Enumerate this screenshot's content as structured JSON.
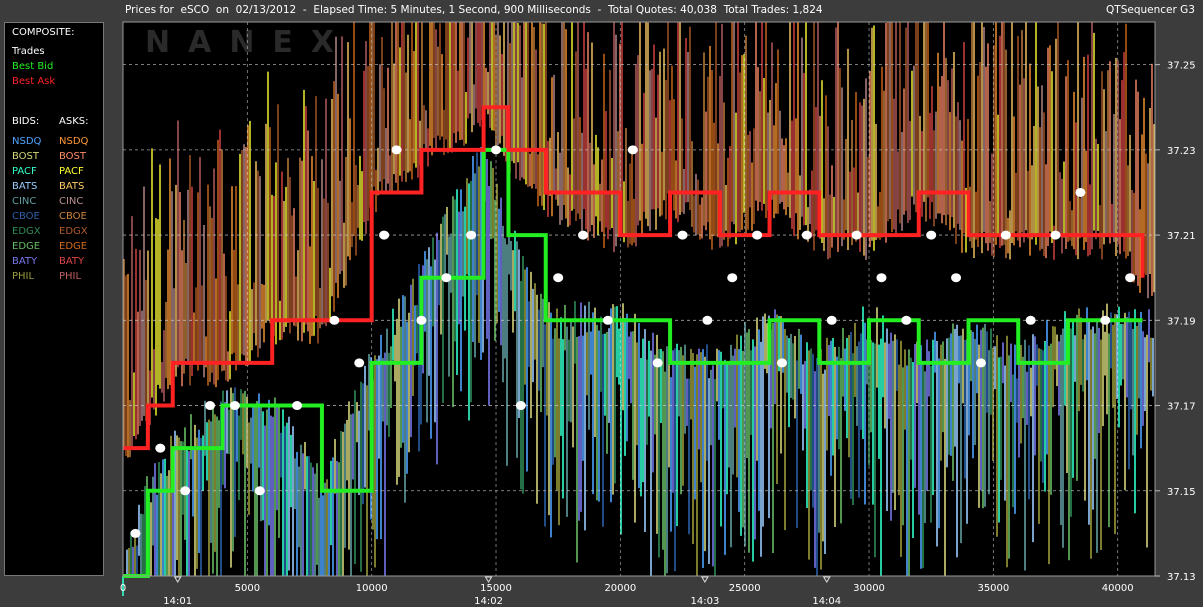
{
  "header": {
    "title": "Prices for  eSCO  on  02/13/2012  -  Elapsed Time: 5 Minutes, 1 Second, 900 Milliseconds  -  Total Quotes: 40,038  Total Trades: 1,824",
    "app": "QTSequencer G3"
  },
  "watermark": "NANEX",
  "legend": {
    "composite_title": "COMPOSITE:",
    "composite": [
      {
        "label": "Trades",
        "color": "#ffffff"
      },
      {
        "label": "Best Bid",
        "color": "#22ee22"
      },
      {
        "label": "Best Ask",
        "color": "#ff2222"
      }
    ],
    "bids_title": "BIDS:",
    "asks_title": "ASKS:",
    "exchanges": [
      {
        "name": "NSDQ",
        "bid_color": "#4fa3ff",
        "ask_color": "#ff9933"
      },
      {
        "name": "BOST",
        "bid_color": "#d4d47a",
        "ask_color": "#ff8c69"
      },
      {
        "name": "PACF",
        "bid_color": "#33ffcc",
        "ask_color": "#ffff33"
      },
      {
        "name": "BATS",
        "bid_color": "#99ccff",
        "ask_color": "#ffcc66"
      },
      {
        "name": "CINC",
        "bid_color": "#5f9ea0",
        "ask_color": "#bc8f8f"
      },
      {
        "name": "CBOE",
        "bid_color": "#2a5fa8",
        "ask_color": "#cd853f"
      },
      {
        "name": "EDGX",
        "bid_color": "#2e8b57",
        "ask_color": "#b05a2a"
      },
      {
        "name": "EDGE",
        "bid_color": "#66bb66",
        "ask_color": "#d2691e"
      },
      {
        "name": "BATY",
        "bid_color": "#7777ee",
        "ask_color": "#dd4444"
      },
      {
        "name": "PHIL",
        "bid_color": "#9b9b3a",
        "ask_color": "#c06060"
      }
    ]
  },
  "chart_data": {
    "type": "line",
    "title": "",
    "xlabel": "",
    "ylabel": "",
    "xlim": [
      0,
      41500
    ],
    "ylim": [
      37.13,
      37.26
    ],
    "x_ticks": [
      0,
      5000,
      10000,
      15000,
      20000,
      25000,
      30000,
      35000,
      40000
    ],
    "x_tick_labels": [
      "0",
      "5000",
      "10000",
      "15000",
      "20000",
      "25000",
      "30000",
      "35000",
      "40000"
    ],
    "time_markers": [
      {
        "label": "14:01",
        "x": 2200
      },
      {
        "label": "14:02",
        "x": 14700
      },
      {
        "label": "14:03",
        "x": 23400
      },
      {
        "label": "14:04",
        "x": 28300
      }
    ],
    "y_ticks": [
      37.13,
      37.15,
      37.17,
      37.19,
      37.21,
      37.23,
      37.25
    ],
    "y_tick_labels": [
      "37.13",
      "37.15",
      "37.17",
      "37.19",
      "37.21",
      "37.23",
      "37.25"
    ],
    "grid": true,
    "series": [
      {
        "name": "Best Bid",
        "color": "#22ee22",
        "x": [
          0,
          1000,
          2000,
          4000,
          6000,
          8000,
          10000,
          12000,
          14500,
          15500,
          17000,
          20000,
          22000,
          24000,
          26000,
          28000,
          30000,
          32000,
          34000,
          36000,
          38000,
          40000,
          41000
        ],
        "y": [
          37.13,
          37.15,
          37.16,
          37.17,
          37.17,
          37.15,
          37.18,
          37.2,
          37.23,
          37.21,
          37.19,
          37.19,
          37.18,
          37.18,
          37.19,
          37.18,
          37.19,
          37.18,
          37.19,
          37.18,
          37.19,
          37.19,
          37.19
        ]
      },
      {
        "name": "Best Ask",
        "color": "#ff2222",
        "x": [
          0,
          1000,
          2000,
          4000,
          6000,
          8000,
          10000,
          12000,
          14500,
          15500,
          17000,
          20000,
          22000,
          24000,
          26000,
          28000,
          30000,
          32000,
          34000,
          36000,
          38000,
          40000,
          41000
        ],
        "y": [
          37.16,
          37.17,
          37.18,
          37.18,
          37.19,
          37.19,
          37.22,
          37.23,
          37.24,
          37.23,
          37.22,
          37.21,
          37.22,
          37.21,
          37.22,
          37.21,
          37.21,
          37.22,
          37.21,
          37.21,
          37.21,
          37.21,
          37.2
        ]
      },
      {
        "name": "Trades",
        "color": "#ffffff",
        "x": [
          500,
          1500,
          2500,
          3500,
          4500,
          5500,
          7000,
          8500,
          9500,
          10500,
          11000,
          12000,
          13000,
          14000,
          15000,
          16000,
          17500,
          18500,
          19500,
          20500,
          21500,
          22500,
          23500,
          24500,
          25500,
          26500,
          27500,
          28500,
          29500,
          30500,
          31500,
          32500,
          33500,
          34500,
          35500,
          36500,
          37500,
          38500,
          39500,
          40500
        ],
        "y": [
          37.14,
          37.16,
          37.15,
          37.17,
          37.17,
          37.15,
          37.17,
          37.19,
          37.18,
          37.21,
          37.23,
          37.19,
          37.2,
          37.21,
          37.23,
          37.17,
          37.2,
          37.21,
          37.19,
          37.23,
          37.18,
          37.21,
          37.19,
          37.2,
          37.21,
          37.18,
          37.21,
          37.19,
          37.21,
          37.2,
          37.19,
          37.21,
          37.2,
          37.18,
          37.21,
          37.19,
          37.21,
          37.22,
          37.19,
          37.2
        ]
      }
    ]
  }
}
